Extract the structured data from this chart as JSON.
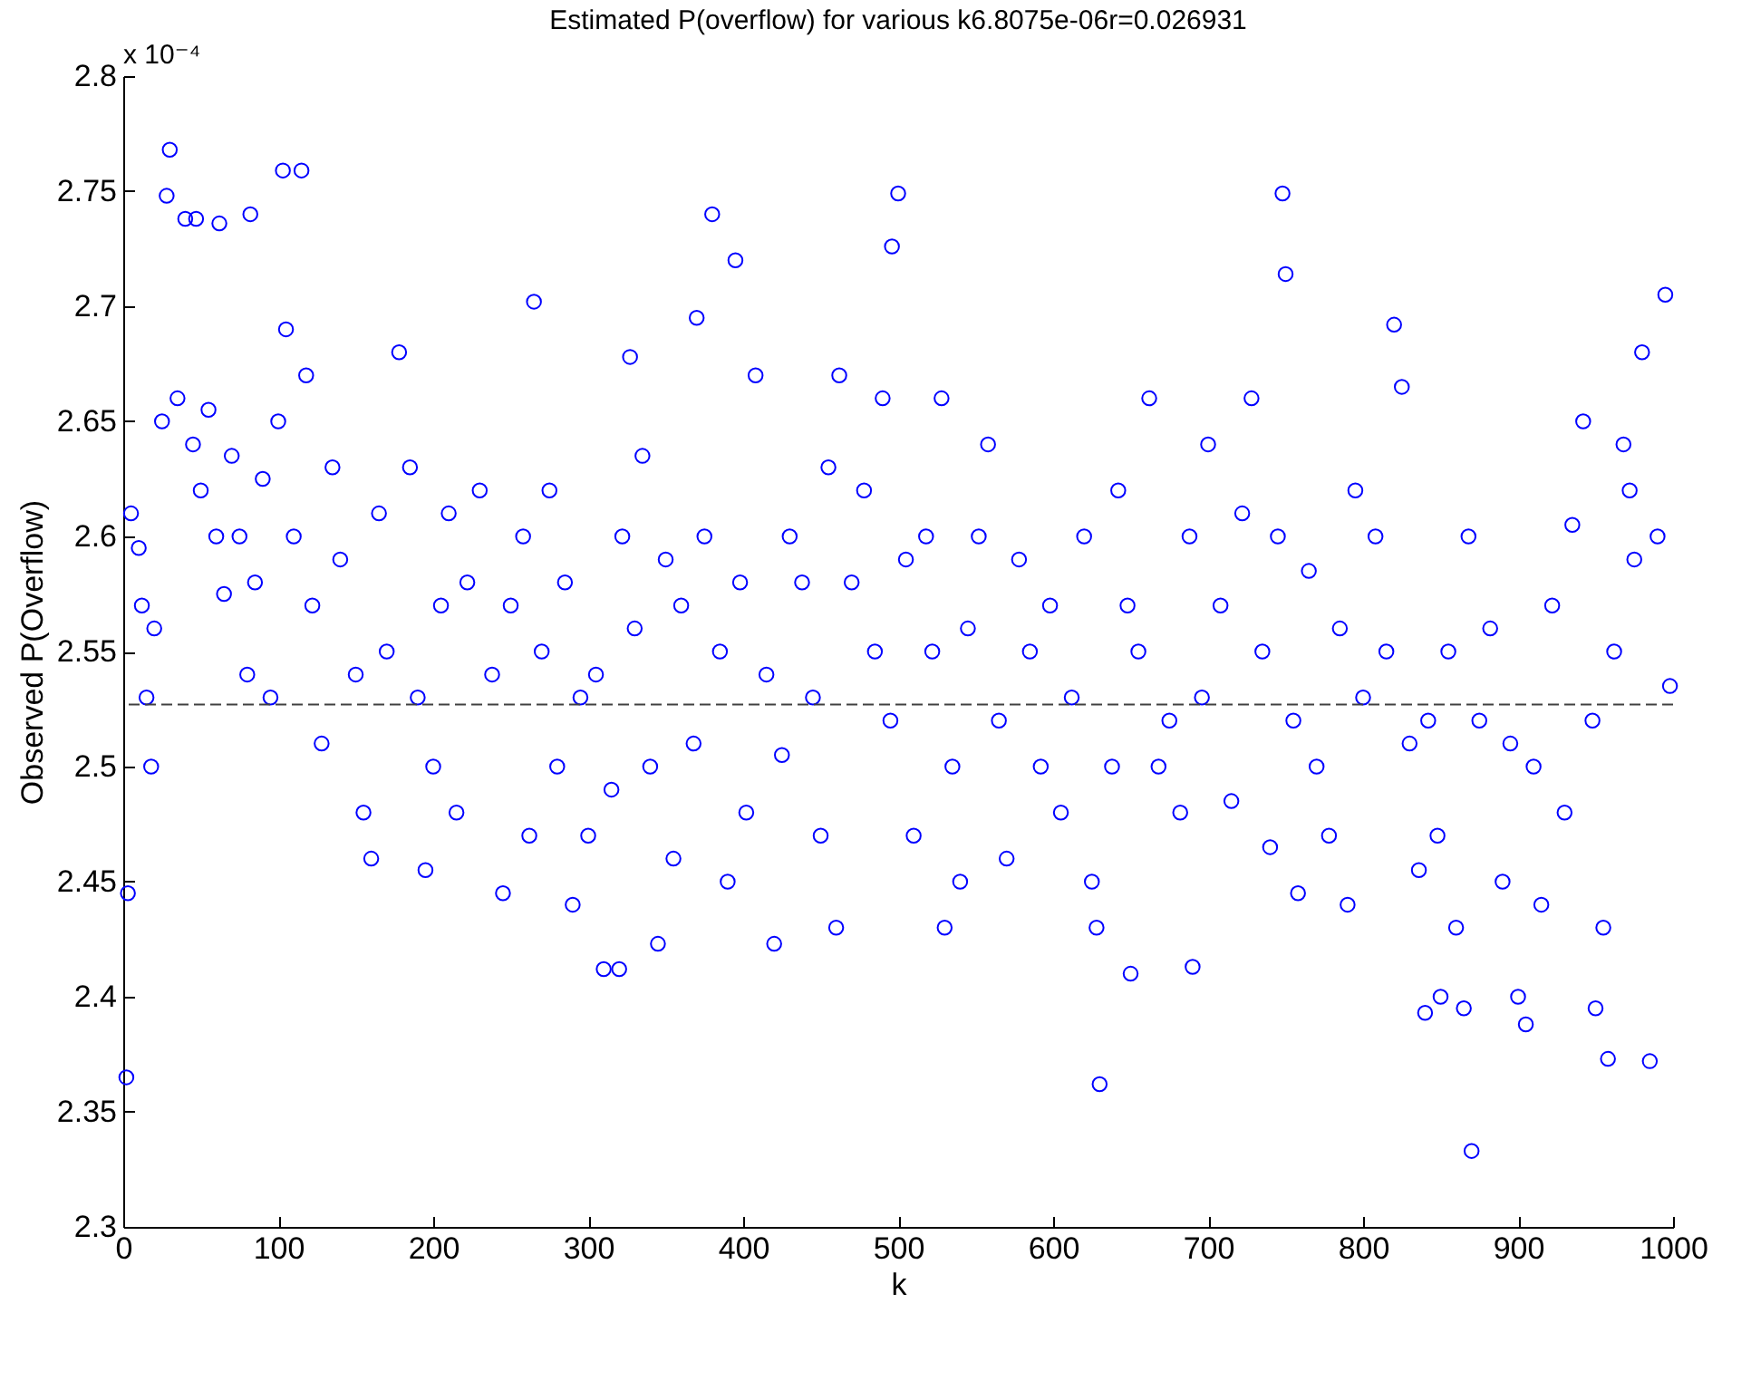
{
  "chart_data": {
    "type": "scatter",
    "title": "Estimated P(overflow) for various k6.8075e-06r=0.026931",
    "xlabel": "k",
    "ylabel": "Observed P(Overflow)",
    "annotations": [
      "x 10⁻⁴"
    ],
    "x": [
      2,
      3,
      30,
      28,
      40,
      47,
      62,
      82,
      103,
      115,
      265,
      327,
      370,
      380,
      395,
      496,
      500,
      420,
      630,
      650,
      748,
      750,
      820,
      870,
      905,
      958,
      985,
      995,
      980,
      690,
      310,
      320,
      345,
      460,
      530,
      840,
      850,
      865,
      900,
      950,
      740,
      5,
      10,
      12,
      15,
      18,
      20,
      25,
      35,
      45,
      50,
      55,
      60,
      65,
      70,
      75,
      80,
      85,
      90,
      95,
      100,
      105,
      110,
      118,
      122,
      128,
      135,
      140,
      150,
      155,
      160,
      165,
      170,
      178,
      185,
      190,
      195,
      200,
      205,
      210,
      215,
      222,
      230,
      238,
      245,
      250,
      258,
      262,
      270,
      275,
      280,
      285,
      290,
      295,
      300,
      305,
      315,
      322,
      330,
      335,
      340,
      350,
      355,
      360,
      368,
      375,
      385,
      390,
      398,
      402,
      408,
      415,
      425,
      430,
      438,
      445,
      450,
      455,
      462,
      470,
      478,
      485,
      490,
      495,
      505,
      510,
      518,
      522,
      528,
      535,
      540,
      545,
      552,
      558,
      565,
      570,
      578,
      585,
      592,
      598,
      605,
      612,
      620,
      625,
      628,
      638,
      642,
      648,
      655,
      662,
      668,
      675,
      682,
      688,
      696,
      700,
      708,
      715,
      722,
      728,
      735,
      745,
      755,
      758,
      765,
      770,
      778,
      785,
      790,
      795,
      800,
      808,
      815,
      825,
      830,
      836,
      842,
      848,
      855,
      860,
      868,
      875,
      882,
      890,
      895,
      910,
      915,
      922,
      930,
      935,
      942,
      948,
      955,
      962,
      968,
      972,
      975,
      990,
      998
    ],
    "values": [
      2.365,
      2.445,
      2.768,
      2.748,
      2.738,
      2.738,
      2.736,
      2.74,
      2.759,
      2.759,
      2.702,
      2.678,
      2.695,
      2.74,
      2.72,
      2.726,
      2.749,
      2.423,
      2.362,
      2.41,
      2.749,
      2.714,
      2.692,
      2.333,
      2.388,
      2.373,
      2.372,
      2.705,
      2.68,
      2.413,
      2.412,
      2.412,
      2.423,
      2.43,
      2.43,
      2.393,
      2.4,
      2.395,
      2.4,
      2.395,
      2.465,
      2.61,
      2.595,
      2.57,
      2.53,
      2.5,
      2.56,
      2.65,
      2.66,
      2.64,
      2.62,
      2.655,
      2.6,
      2.575,
      2.635,
      2.6,
      2.54,
      2.58,
      2.625,
      2.53,
      2.65,
      2.69,
      2.6,
      2.67,
      2.57,
      2.51,
      2.63,
      2.59,
      2.54,
      2.48,
      2.46,
      2.61,
      2.55,
      2.68,
      2.63,
      2.53,
      2.455,
      2.5,
      2.57,
      2.61,
      2.48,
      2.58,
      2.62,
      2.54,
      2.445,
      2.57,
      2.6,
      2.47,
      2.55,
      2.62,
      2.5,
      2.58,
      2.44,
      2.53,
      2.47,
      2.54,
      2.49,
      2.6,
      2.56,
      2.635,
      2.5,
      2.59,
      2.46,
      2.57,
      2.51,
      2.6,
      2.55,
      2.45,
      2.58,
      2.48,
      2.67,
      2.54,
      2.505,
      2.6,
      2.58,
      2.53,
      2.47,
      2.63,
      2.67,
      2.58,
      2.62,
      2.55,
      2.66,
      2.52,
      2.59,
      2.47,
      2.6,
      2.55,
      2.66,
      2.5,
      2.45,
      2.56,
      2.6,
      2.64,
      2.52,
      2.46,
      2.59,
      2.55,
      2.5,
      2.57,
      2.48,
      2.53,
      2.6,
      2.45,
      2.43,
      2.5,
      2.62,
      2.57,
      2.55,
      2.66,
      2.5,
      2.52,
      2.48,
      2.6,
      2.53,
      2.64,
      2.57,
      2.485,
      2.61,
      2.66,
      2.55,
      2.6,
      2.52,
      2.445,
      2.585,
      2.5,
      2.47,
      2.56,
      2.44,
      2.62,
      2.53,
      2.6,
      2.55,
      2.665,
      2.51,
      2.455,
      2.52,
      2.47,
      2.55,
      2.43,
      2.6,
      2.52,
      2.56,
      2.45,
      2.51,
      2.5,
      2.44,
      2.57,
      2.48,
      2.605,
      2.65,
      2.52,
      2.43,
      2.55,
      2.64,
      2.62,
      2.59,
      2.6,
      2.535
    ],
    "color": "#0000ff",
    "marker": "circle",
    "xlim": [
      0,
      1000
    ],
    "xticks": [
      0,
      100,
      200,
      300,
      400,
      500,
      600,
      700,
      800,
      900,
      1000
    ],
    "ylim": [
      2.3,
      2.8
    ],
    "yticks": [
      2.3,
      2.35,
      2.4,
      2.45,
      2.5,
      2.55,
      2.6,
      2.65,
      2.7,
      2.75,
      2.8
    ],
    "ref_lines": [
      {
        "axis": "y",
        "value": 2.527,
        "color": "#404040",
        "line_style": "dashed"
      }
    ]
  }
}
